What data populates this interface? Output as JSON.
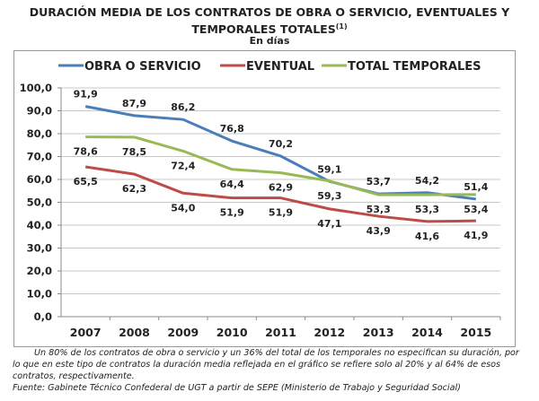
{
  "title": "DURACIÓN MEDIA DE LOS CONTRATOS DE OBRA O SERVICIO, EVENTUALES Y TEMPORALES TOTALES",
  "title_sup": "(1)",
  "subtitle": "En días",
  "note": "Un 80% de los contratos de obra o servicio y un 36% del total de los temporales no especifican su duración, por lo que en este tipo de contratos la duración media reflejada en el gráfico se refiere solo al 20% y al 64% de esos contratos, respectivamente.",
  "source": "Fuente: Gabinete Técnico Confederal de UGT a partir de SEPE (Ministerio de Trabajo y Seguridad Social)",
  "chart_data": {
    "type": "line",
    "categories": [
      "2007",
      "2008",
      "2009",
      "2010",
      "2011",
      "2012",
      "2013",
      "2014",
      "2015"
    ],
    "ylim": [
      0,
      100
    ],
    "yticks": [
      "0,0",
      "10,0",
      "20,0",
      "30,0",
      "40,0",
      "50,0",
      "60,0",
      "70,0",
      "80,0",
      "90,0",
      "100,0"
    ],
    "grid": true,
    "legend": "top",
    "series": [
      {
        "name": "OBRA O SERVICIO",
        "color": "#4a7ebb",
        "values": [
          91.9,
          87.9,
          86.2,
          76.8,
          70.2,
          59.1,
          53.7,
          54.2,
          51.4
        ]
      },
      {
        "name": "EVENTUAL",
        "color": "#be4b48",
        "values": [
          65.5,
          62.3,
          54.0,
          51.9,
          51.9,
          47.1,
          43.9,
          41.6,
          41.9
        ]
      },
      {
        "name": "TOTAL  TEMPORALES",
        "color": "#98b954",
        "values": [
          78.6,
          78.5,
          72.4,
          64.4,
          62.9,
          59.3,
          53.3,
          53.3,
          53.4
        ]
      }
    ]
  }
}
